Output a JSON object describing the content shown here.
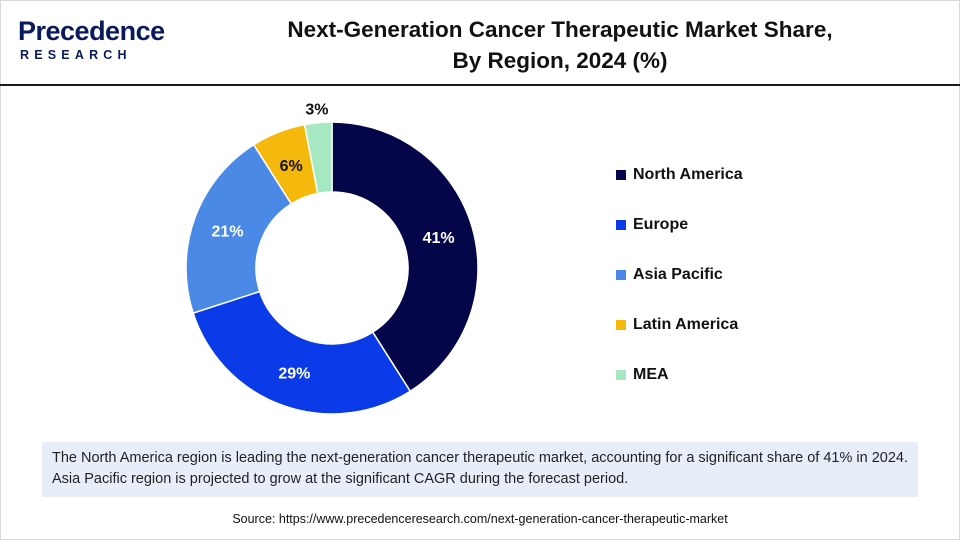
{
  "brand": {
    "name": "Precedence",
    "subtitle": "RESEARCH"
  },
  "header": {
    "title_line1": "Next-Generation Cancer Therapeutic Market Share,",
    "title_line2": "By Region, 2024 (%)"
  },
  "chart_data": {
    "type": "pie",
    "variant": "donut",
    "categories": [
      "North America",
      "Europe",
      "Asia Pacific",
      "Latin America",
      "MEA"
    ],
    "values": [
      41,
      29,
      21,
      6,
      3
    ],
    "labels": [
      "41%",
      "29%",
      "21%",
      "6%",
      "3%"
    ],
    "colors": [
      "#05064a",
      "#0b3be8",
      "#4a8ae6",
      "#f5b80c",
      "#a6e8c2"
    ],
    "label_colors": [
      "#ffffff",
      "#ffffff",
      "#ffffff",
      "#111111",
      "#111111"
    ],
    "unit": "%",
    "legend_position": "right"
  },
  "note": {
    "text": "The North America region is leading the next-generation cancer therapeutic market, accounting for a significant share of 41% in 2024. Asia Pacific region is projected to grow at the significant CAGR during the forecast period."
  },
  "source": {
    "text": "Source: https://www.precedenceresearch.com/next-generation-cancer-therapeutic-market"
  }
}
